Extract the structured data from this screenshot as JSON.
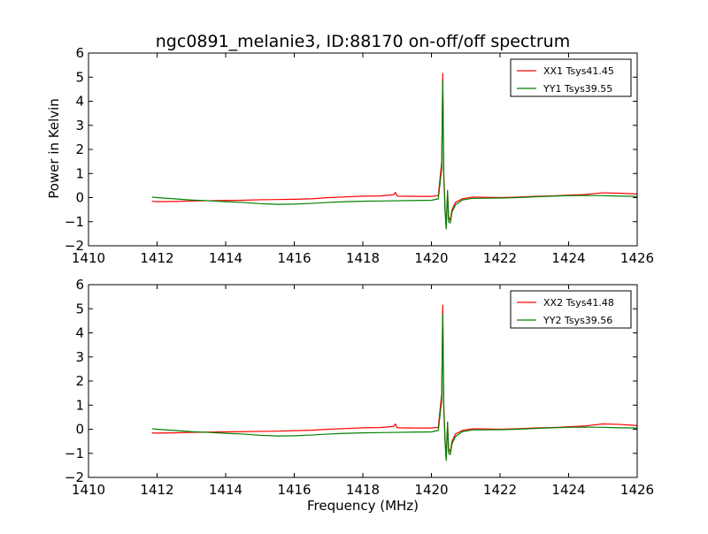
{
  "title": "ngc0891_melanie3, ID:88170 on-off/off spectrum",
  "ylabel": "Power in Kelvin",
  "xlabel": "Frequency (MHz)",
  "colors": {
    "xx": "#ff0000",
    "yy": "#008000",
    "frame": "#000000",
    "background": "#ffffff"
  },
  "chart_data": [
    {
      "type": "line",
      "xlim": [
        1410,
        1426
      ],
      "ylim": [
        -2,
        6
      ],
      "xticks": [
        1410,
        1412,
        1414,
        1416,
        1418,
        1420,
        1422,
        1424,
        1426
      ],
      "yticks": [
        -2,
        -1,
        0,
        1,
        2,
        3,
        4,
        5,
        6
      ],
      "ylabel": "Power in Kelvin",
      "xlabel": "",
      "grid": false,
      "legend_position": "top-right",
      "series": [
        {
          "name": "XX1 Tsys41.45",
          "color": "#ff0000",
          "points": [
            [
              1411.85,
              -0.15
            ],
            [
              1412.0,
              -0.17
            ],
            [
              1412.5,
              -0.16
            ],
            [
              1413.0,
              -0.14
            ],
            [
              1413.5,
              -0.13
            ],
            [
              1414.0,
              -0.12
            ],
            [
              1414.5,
              -0.11
            ],
            [
              1415.0,
              -0.09
            ],
            [
              1415.5,
              -0.08
            ],
            [
              1416.0,
              -0.07
            ],
            [
              1416.5,
              -0.05
            ],
            [
              1417.0,
              0.0
            ],
            [
              1417.5,
              0.03
            ],
            [
              1418.0,
              0.06
            ],
            [
              1418.5,
              0.07
            ],
            [
              1418.9,
              0.12
            ],
            [
              1418.95,
              0.22
            ],
            [
              1419.0,
              0.06
            ],
            [
              1419.5,
              0.05
            ],
            [
              1420.0,
              0.05
            ],
            [
              1420.2,
              0.08
            ],
            [
              1420.3,
              1.5
            ],
            [
              1420.33,
              5.15
            ],
            [
              1420.36,
              1.0
            ],
            [
              1420.4,
              -0.5
            ],
            [
              1420.43,
              -1.25
            ],
            [
              1420.47,
              0.25
            ],
            [
              1420.5,
              -0.8
            ],
            [
              1420.55,
              -0.95
            ],
            [
              1420.6,
              -0.5
            ],
            [
              1420.7,
              -0.2
            ],
            [
              1420.9,
              -0.05
            ],
            [
              1421.2,
              0.02
            ],
            [
              1422.0,
              0.0
            ],
            [
              1422.5,
              0.02
            ],
            [
              1423.0,
              0.05
            ],
            [
              1423.5,
              0.07
            ],
            [
              1424.0,
              0.1
            ],
            [
              1424.5,
              0.13
            ],
            [
              1425.0,
              0.2
            ],
            [
              1425.5,
              0.18
            ],
            [
              1426.0,
              0.15
            ]
          ]
        },
        {
          "name": "YY1 Tsys39.55",
          "color": "#008000",
          "points": [
            [
              1411.85,
              0.02
            ],
            [
              1412.0,
              0.0
            ],
            [
              1412.5,
              -0.05
            ],
            [
              1413.0,
              -0.1
            ],
            [
              1413.5,
              -0.13
            ],
            [
              1414.0,
              -0.17
            ],
            [
              1414.5,
              -0.2
            ],
            [
              1415.0,
              -0.25
            ],
            [
              1415.5,
              -0.28
            ],
            [
              1416.0,
              -0.27
            ],
            [
              1416.5,
              -0.24
            ],
            [
              1417.0,
              -0.2
            ],
            [
              1417.5,
              -0.17
            ],
            [
              1418.0,
              -0.15
            ],
            [
              1418.5,
              -0.14
            ],
            [
              1419.0,
              -0.13
            ],
            [
              1419.5,
              -0.12
            ],
            [
              1420.0,
              -0.11
            ],
            [
              1420.2,
              -0.05
            ],
            [
              1420.3,
              1.2
            ],
            [
              1420.33,
              4.85
            ],
            [
              1420.36,
              0.8
            ],
            [
              1420.4,
              -0.6
            ],
            [
              1420.43,
              -1.3
            ],
            [
              1420.47,
              0.3
            ],
            [
              1420.5,
              -1.0
            ],
            [
              1420.55,
              -1.05
            ],
            [
              1420.6,
              -0.6
            ],
            [
              1420.7,
              -0.3
            ],
            [
              1420.9,
              -0.1
            ],
            [
              1421.2,
              -0.03
            ],
            [
              1422.0,
              -0.02
            ],
            [
              1422.5,
              0.0
            ],
            [
              1423.0,
              0.03
            ],
            [
              1423.5,
              0.06
            ],
            [
              1424.0,
              0.08
            ],
            [
              1424.5,
              0.09
            ],
            [
              1425.0,
              0.08
            ],
            [
              1425.5,
              0.06
            ],
            [
              1426.0,
              0.05
            ]
          ]
        }
      ]
    },
    {
      "type": "line",
      "xlim": [
        1410,
        1426
      ],
      "ylim": [
        -2,
        6
      ],
      "xticks": [
        1410,
        1412,
        1414,
        1416,
        1418,
        1420,
        1422,
        1424,
        1426
      ],
      "yticks": [
        -2,
        -1,
        0,
        1,
        2,
        3,
        4,
        5,
        6
      ],
      "ylabel": "",
      "xlabel": "Frequency (MHz)",
      "grid": false,
      "legend_position": "top-right",
      "series": [
        {
          "name": "XX2 Tsys41.48",
          "color": "#ff0000",
          "points": [
            [
              1411.85,
              -0.15
            ],
            [
              1412.0,
              -0.16
            ],
            [
              1412.5,
              -0.15
            ],
            [
              1413.0,
              -0.13
            ],
            [
              1413.5,
              -0.12
            ],
            [
              1414.0,
              -0.11
            ],
            [
              1414.5,
              -0.1
            ],
            [
              1415.0,
              -0.09
            ],
            [
              1415.5,
              -0.08
            ],
            [
              1416.0,
              -0.06
            ],
            [
              1416.5,
              -0.04
            ],
            [
              1417.0,
              0.0
            ],
            [
              1417.5,
              0.03
            ],
            [
              1418.0,
              0.06
            ],
            [
              1418.5,
              0.07
            ],
            [
              1418.9,
              0.12
            ],
            [
              1418.95,
              0.22
            ],
            [
              1419.0,
              0.06
            ],
            [
              1419.5,
              0.05
            ],
            [
              1420.0,
              0.05
            ],
            [
              1420.2,
              0.08
            ],
            [
              1420.3,
              1.5
            ],
            [
              1420.33,
              5.15
            ],
            [
              1420.36,
              1.0
            ],
            [
              1420.4,
              -0.5
            ],
            [
              1420.43,
              -1.2
            ],
            [
              1420.47,
              0.25
            ],
            [
              1420.5,
              -0.8
            ],
            [
              1420.55,
              -0.95
            ],
            [
              1420.6,
              -0.5
            ],
            [
              1420.7,
              -0.2
            ],
            [
              1420.9,
              -0.05
            ],
            [
              1421.2,
              0.02
            ],
            [
              1422.0,
              0.0
            ],
            [
              1422.5,
              0.02
            ],
            [
              1423.0,
              0.05
            ],
            [
              1423.5,
              0.07
            ],
            [
              1424.0,
              0.1
            ],
            [
              1424.5,
              0.14
            ],
            [
              1425.0,
              0.22
            ],
            [
              1425.5,
              0.2
            ],
            [
              1426.0,
              0.15
            ]
          ]
        },
        {
          "name": "YY2 Tsys39.56",
          "color": "#008000",
          "points": [
            [
              1411.85,
              0.02
            ],
            [
              1412.0,
              0.0
            ],
            [
              1412.5,
              -0.05
            ],
            [
              1413.0,
              -0.1
            ],
            [
              1413.5,
              -0.13
            ],
            [
              1414.0,
              -0.17
            ],
            [
              1414.5,
              -0.2
            ],
            [
              1415.0,
              -0.25
            ],
            [
              1415.5,
              -0.28
            ],
            [
              1416.0,
              -0.27
            ],
            [
              1416.5,
              -0.24
            ],
            [
              1417.0,
              -0.2
            ],
            [
              1417.5,
              -0.17
            ],
            [
              1418.0,
              -0.15
            ],
            [
              1418.5,
              -0.14
            ],
            [
              1419.0,
              -0.13
            ],
            [
              1419.5,
              -0.12
            ],
            [
              1420.0,
              -0.11
            ],
            [
              1420.2,
              -0.05
            ],
            [
              1420.3,
              1.2
            ],
            [
              1420.33,
              4.8
            ],
            [
              1420.36,
              0.8
            ],
            [
              1420.4,
              -0.6
            ],
            [
              1420.43,
              -1.3
            ],
            [
              1420.47,
              0.3
            ],
            [
              1420.5,
              -1.0
            ],
            [
              1420.55,
              -1.05
            ],
            [
              1420.6,
              -0.6
            ],
            [
              1420.7,
              -0.3
            ],
            [
              1420.9,
              -0.1
            ],
            [
              1421.2,
              -0.03
            ],
            [
              1422.0,
              -0.02
            ],
            [
              1422.5,
              0.0
            ],
            [
              1423.0,
              0.03
            ],
            [
              1423.5,
              0.06
            ],
            [
              1424.0,
              0.08
            ],
            [
              1424.5,
              0.09
            ],
            [
              1425.0,
              0.08
            ],
            [
              1425.5,
              0.06
            ],
            [
              1426.0,
              0.05
            ]
          ]
        }
      ]
    }
  ]
}
